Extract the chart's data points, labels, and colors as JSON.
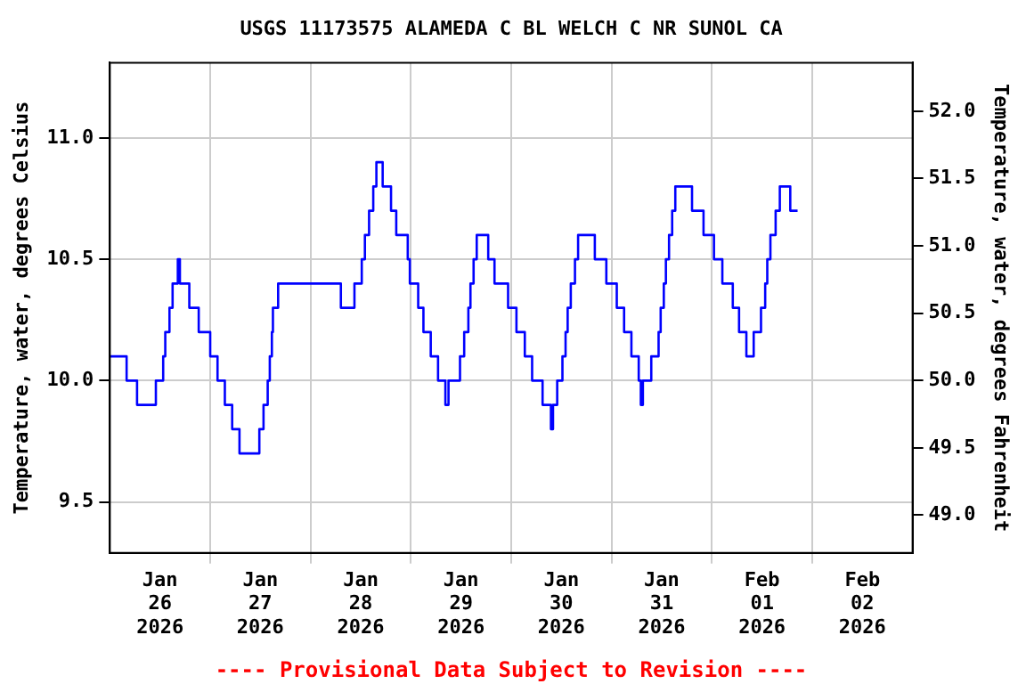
{
  "chart_data": {
    "type": "step",
    "title": "USGS 11173575 ALAMEDA C BL WELCH C NR SUNOL CA",
    "ylabel": "Temperature, water, degrees Celsius",
    "y2label": "Temperature, water, degrees Fahrenheit",
    "annotations": [
      "---- Provisional Data Subject to Revision ----"
    ],
    "x": [
      "2026-01-26T00:00",
      "2026-01-26T04:00",
      "2026-01-26T06:30",
      "2026-01-26T11:00",
      "2026-01-26T12:45",
      "2026-01-26T13:15",
      "2026-01-26T14:15",
      "2026-01-26T15:00",
      "2026-01-26T16:15",
      "2026-01-26T16:45",
      "2026-01-26T19:00",
      "2026-01-26T21:15",
      "2026-01-27T00:00",
      "2026-01-27T01:45",
      "2026-01-27T03:30",
      "2026-01-27T05:15",
      "2026-01-27T07:00",
      "2026-01-27T11:45",
      "2026-01-27T12:45",
      "2026-01-27T13:45",
      "2026-01-27T14:15",
      "2026-01-27T14:45",
      "2026-01-27T15:00",
      "2026-01-27T16:15",
      "2026-01-28T07:15",
      "2026-01-28T10:30",
      "2026-01-28T12:15",
      "2026-01-28T13:00",
      "2026-01-28T14:00",
      "2026-01-28T15:00",
      "2026-01-28T15:45",
      "2026-01-28T17:15",
      "2026-01-28T19:15",
      "2026-01-28T20:30",
      "2026-01-28T23:15",
      "2026-01-28T23:45",
      "2026-01-29T01:45",
      "2026-01-29T03:00",
      "2026-01-29T04:45",
      "2026-01-29T06:30",
      "2026-01-29T08:15",
      "2026-01-29T09:00",
      "2026-01-29T11:45",
      "2026-01-29T12:45",
      "2026-01-29T13:45",
      "2026-01-29T14:15",
      "2026-01-29T15:00",
      "2026-01-29T15:45",
      "2026-01-29T18:30",
      "2026-01-29T20:00",
      "2026-01-29T23:15",
      "2026-01-30T01:15",
      "2026-01-30T03:15",
      "2026-01-30T05:00",
      "2026-01-30T07:30",
      "2026-01-30T09:30",
      "2026-01-30T10:00",
      "2026-01-30T11:00",
      "2026-01-30T12:15",
      "2026-01-30T13:00",
      "2026-01-30T13:30",
      "2026-01-30T14:15",
      "2026-01-30T15:15",
      "2026-01-30T16:00",
      "2026-01-30T20:00",
      "2026-01-30T22:45",
      "2026-01-31T01:15",
      "2026-01-31T03:00",
      "2026-01-31T04:45",
      "2026-01-31T06:30",
      "2026-01-31T07:00",
      "2026-01-31T07:30",
      "2026-01-31T09:30",
      "2026-01-31T11:15",
      "2026-01-31T11:45",
      "2026-01-31T12:30",
      "2026-01-31T13:00",
      "2026-01-31T13:45",
      "2026-01-31T14:30",
      "2026-01-31T15:15",
      "2026-01-31T19:15",
      "2026-01-31T22:00",
      "2026-02-01T00:30",
      "2026-02-01T02:30",
      "2026-02-01T05:00",
      "2026-02-01T06:30",
      "2026-02-01T08:15",
      "2026-02-01T10:00",
      "2026-02-01T11:45",
      "2026-02-01T12:45",
      "2026-02-01T13:15",
      "2026-02-01T14:00",
      "2026-02-01T15:15",
      "2026-02-01T16:15",
      "2026-02-01T18:45",
      "2026-02-01T20:30"
    ],
    "series": [
      {
        "color": "#0000ff",
        "values": [
          10.1,
          10.0,
          9.9,
          10.0,
          10.1,
          10.2,
          10.3,
          10.4,
          10.5,
          10.4,
          10.3,
          10.2,
          10.1,
          10.0,
          9.9,
          9.8,
          9.7,
          9.8,
          9.9,
          10.0,
          10.1,
          10.2,
          10.3,
          10.4,
          10.3,
          10.4,
          10.5,
          10.6,
          10.7,
          10.8,
          10.9,
          10.8,
          10.7,
          10.6,
          10.5,
          10.4,
          10.3,
          10.2,
          10.1,
          10.0,
          9.9,
          10.0,
          10.1,
          10.2,
          10.3,
          10.4,
          10.5,
          10.6,
          10.5,
          10.4,
          10.3,
          10.2,
          10.1,
          10.0,
          9.9,
          9.8,
          9.9,
          10.0,
          10.1,
          10.2,
          10.3,
          10.4,
          10.5,
          10.6,
          10.5,
          10.4,
          10.3,
          10.2,
          10.1,
          10.0,
          9.9,
          10.0,
          10.1,
          10.2,
          10.3,
          10.4,
          10.5,
          10.6,
          10.7,
          10.8,
          10.7,
          10.6,
          10.5,
          10.4,
          10.3,
          10.2,
          10.1,
          10.2,
          10.3,
          10.4,
          10.5,
          10.6,
          10.7,
          10.8,
          10.7,
          10.7
        ]
      }
    ],
    "xlim": [
      "2026-01-26T00:00",
      "2026-02-03T00:00"
    ],
    "xticks": [
      {
        "value": "2026-01-26T12:00",
        "label": "Jan\n26\n2026"
      },
      {
        "value": "2026-01-27T00:00",
        "label": null
      },
      {
        "value": "2026-01-27T12:00",
        "label": "Jan\n27\n2026"
      },
      {
        "value": "2026-01-28T00:00",
        "label": null
      },
      {
        "value": "2026-01-28T12:00",
        "label": "Jan\n28\n2026"
      },
      {
        "value": "2026-01-29T00:00",
        "label": null
      },
      {
        "value": "2026-01-29T12:00",
        "label": "Jan\n29\n2026"
      },
      {
        "value": "2026-01-30T00:00",
        "label": null
      },
      {
        "value": "2026-01-30T12:00",
        "label": "Jan\n30\n2026"
      },
      {
        "value": "2026-01-31T00:00",
        "label": null
      },
      {
        "value": "2026-01-31T12:00",
        "label": "Jan\n31\n2026"
      },
      {
        "value": "2026-02-01T00:00",
        "label": null
      },
      {
        "value": "2026-02-01T12:00",
        "label": "Feb\n01\n2026"
      },
      {
        "value": "2026-02-02T00:00",
        "label": null
      },
      {
        "value": "2026-02-02T12:00",
        "label": "Feb\n02\n2026"
      }
    ],
    "ylim": [
      9.29,
      11.31
    ],
    "yticks": [
      9.5,
      {
        "value": 10,
        "label": "10.0"
      },
      10.5,
      {
        "value": 11,
        "label": "11.0"
      }
    ],
    "y2lim": [
      48.72,
      52.36
    ],
    "y2ticks": [
      {
        "value": 49,
        "label": "49.0"
      },
      49.5,
      {
        "value": 50,
        "label": "50.0"
      },
      50.5,
      {
        "value": 51,
        "label": "51.0"
      },
      51.5,
      {
        "value": 52,
        "label": "52.0"
      }
    ],
    "grid": true,
    "legend": false,
    "marker": "none",
    "line_style": "solid"
  }
}
